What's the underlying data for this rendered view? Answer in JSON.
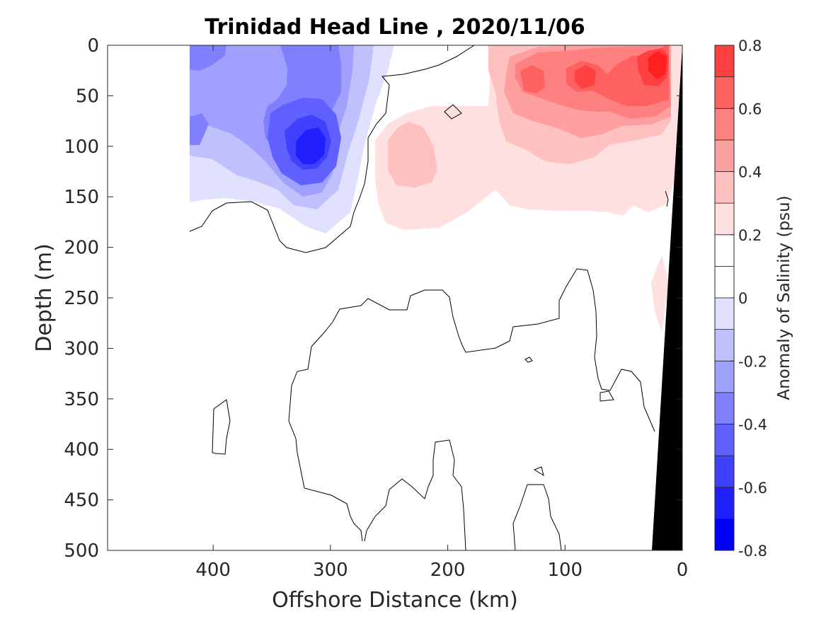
{
  "chart_data": {
    "type": "heatmap",
    "title": "Trinidad Head Line , 2020/11/06",
    "xlabel": "Offshore Distance (km)",
    "ylabel": "Depth (m)",
    "xlim": [
      490,
      0
    ],
    "ylim": [
      0,
      500
    ],
    "x_reversed": true,
    "y_reversed": true,
    "xticks": [
      400,
      300,
      200,
      100,
      0
    ],
    "yticks": [
      0,
      50,
      100,
      150,
      200,
      250,
      300,
      350,
      400,
      450,
      500
    ],
    "x_tick_labels": [
      "400",
      "300",
      "200",
      "100",
      "0"
    ],
    "y_tick_labels": [
      "0",
      "50",
      "100",
      "150",
      "200",
      "250",
      "300",
      "350",
      "400",
      "450",
      "500"
    ],
    "data_extent_x": [
      420,
      0
    ],
    "colorbar": {
      "label": "Anomaly of Salinity (psu)",
      "range": [
        -0.8,
        0.8
      ],
      "levels": [
        -0.8,
        -0.7,
        -0.6,
        -0.5,
        -0.4,
        -0.3,
        -0.2,
        -0.1,
        0,
        0.1,
        0.2,
        0.3,
        0.4,
        0.5,
        0.6,
        0.7,
        0.8
      ],
      "tick_values": [
        0.8,
        0.6,
        0.4,
        0.2,
        0,
        -0.2,
        -0.4,
        -0.6,
        -0.8
      ],
      "tick_labels": [
        "0.8",
        "0.6",
        "0.4",
        "0.2",
        "0",
        "-0.2",
        "-0.4",
        "-0.6",
        "-0.8"
      ],
      "colors": [
        "#0000ff",
        "#2020ff",
        "#4040ff",
        "#6060ff",
        "#8080ff",
        "#a0a0ff",
        "#c0c0ff",
        "#e0e0ff",
        "#ffffff",
        "#ffffff",
        "#ffe0e0",
        "#ffc0c0",
        "#ffa0a0",
        "#ff8080",
        "#ff6060",
        "#ff4040",
        "#ff2020",
        "#ff0000"
      ]
    },
    "features": {
      "fresh_core_negative": {
        "x": 315,
        "y": 105,
        "value": -0.6
      },
      "salty_surface_positive": {
        "x": 25,
        "y": 20,
        "value": 0.7
      },
      "salty_subsurface_positive": {
        "x": 230,
        "y": 110,
        "value": 0.3
      }
    },
    "sea_floor_color": "#000000",
    "grid": false,
    "colorbar_placement": "right"
  }
}
